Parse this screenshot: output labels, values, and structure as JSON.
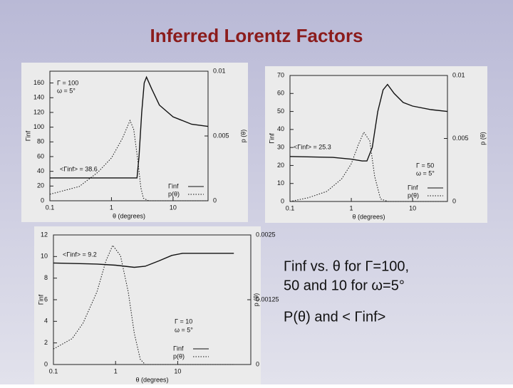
{
  "title": "Inferred Lorentz Factors",
  "bullets": [
    "Γinf vs. θ for Γ=100,",
    "50 and 10 for ω=5°",
    "P(θ) and < Γinf>"
  ],
  "chart_data": [
    {
      "type": "line",
      "x_label": "θ (degrees)",
      "y_label": "Γinf",
      "y2_label": "p (θ)",
      "xscale": "log",
      "xlim": [
        0.1,
        37
      ],
      "xticks": [
        0.1,
        1,
        10
      ],
      "ylim": [
        0,
        176
      ],
      "yticks": [
        0,
        20,
        40,
        60,
        80,
        100,
        120,
        140,
        160
      ],
      "y2lim": [
        0,
        0.01
      ],
      "y2ticks": [
        0,
        0.005,
        0.01
      ],
      "annotations": [
        "Γ = 100",
        "ω = 5°",
        "<Γinf> = 38.6"
      ],
      "series": [
        {
          "name": "Γinf",
          "color": "#111111",
          "style": "solid",
          "x": [
            0.1,
            1,
            2.2,
            2.6,
            2.8,
            3.1,
            3.4,
            3.7,
            4.5,
            6,
            10,
            20,
            37
          ],
          "values": [
            31,
            31,
            31,
            31,
            60,
            120,
            160,
            168,
            152,
            130,
            114,
            104,
            101
          ]
        },
        {
          "name": "p(θ)",
          "color": "#111111",
          "style": "dotted",
          "axis": "y2",
          "x": [
            0.1,
            0.3,
            0.6,
            1,
            1.5,
            2,
            2.3,
            2.7,
            3,
            3.3,
            4,
            37
          ],
          "values": [
            0.0005,
            0.0011,
            0.0022,
            0.0033,
            0.0048,
            0.0062,
            0.0055,
            0.003,
            0.001,
            0.0002,
            0,
            0
          ]
        }
      ]
    },
    {
      "type": "line",
      "x_label": "θ (degrees)",
      "y_label": "Γinf",
      "y2_label": "p (θ)",
      "xscale": "log",
      "xlim": [
        0.1,
        37
      ],
      "xticks": [
        0.1,
        1,
        10
      ],
      "ylim": [
        0,
        70
      ],
      "yticks": [
        0,
        10,
        20,
        30,
        40,
        50,
        60,
        70
      ],
      "y2lim": [
        0,
        0.01
      ],
      "y2ticks": [
        0,
        0.005,
        0.01
      ],
      "annotations": [
        "<Γinf> = 25.3",
        "Γ = 50",
        "ω = 5°"
      ],
      "series": [
        {
          "name": "Γinf",
          "color": "#111111",
          "style": "solid",
          "x": [
            0.1,
            0.5,
            1,
            1.5,
            1.8,
            2.2,
            2.7,
            3.3,
            3.9,
            5,
            7,
            10,
            20,
            37
          ],
          "values": [
            25,
            24.5,
            23.5,
            22.5,
            22.5,
            30,
            50,
            62,
            65,
            60,
            55,
            53,
            51,
            50
          ]
        },
        {
          "name": "p(θ)",
          "color": "#111111",
          "style": "dotted",
          "axis": "y2",
          "x": [
            0.1,
            0.2,
            0.4,
            0.7,
            1,
            1.3,
            1.6,
            2,
            2.4,
            3,
            4,
            37
          ],
          "values": [
            0,
            0.0003,
            0.0008,
            0.0018,
            0.003,
            0.0045,
            0.0055,
            0.0048,
            0.002,
            0.0002,
            0,
            0
          ]
        }
      ]
    },
    {
      "type": "line",
      "x_label": "θ (degrees)",
      "y_label": "Γinf",
      "y2_label": "p (θ)",
      "xscale": "log",
      "xlim": [
        0.1,
        150
      ],
      "xticks": [
        0.1,
        1,
        10
      ],
      "ylim": [
        0,
        12
      ],
      "yticks": [
        0,
        2,
        4,
        6,
        8,
        10,
        12
      ],
      "y2lim": [
        0,
        0.0025
      ],
      "y2ticks": [
        0,
        0.00125,
        0.0025
      ],
      "annotations": [
        "<Γinf> = 9.2",
        "Γ = 10",
        "ω = 5°"
      ],
      "series": [
        {
          "name": "Γinf",
          "color": "#111111",
          "style": "solid",
          "x": [
            0.1,
            0.5,
            1,
            2,
            3,
            5,
            8,
            12,
            80
          ],
          "values": [
            9.4,
            9.3,
            9.2,
            9.0,
            9.1,
            9.6,
            10.1,
            10.3,
            10.3
          ]
        },
        {
          "name": "p(θ)",
          "color": "#111111",
          "style": "dotted",
          "axis": "y2",
          "x": [
            0.1,
            0.2,
            0.3,
            0.5,
            0.7,
            0.9,
            1.2,
            1.6,
            2,
            2.5,
            3,
            80
          ],
          "values": [
            0.0003,
            0.0005,
            0.0008,
            0.0014,
            0.002,
            0.0023,
            0.0021,
            0.0014,
            0.0006,
            0.0001,
            0,
            0
          ]
        }
      ]
    }
  ]
}
